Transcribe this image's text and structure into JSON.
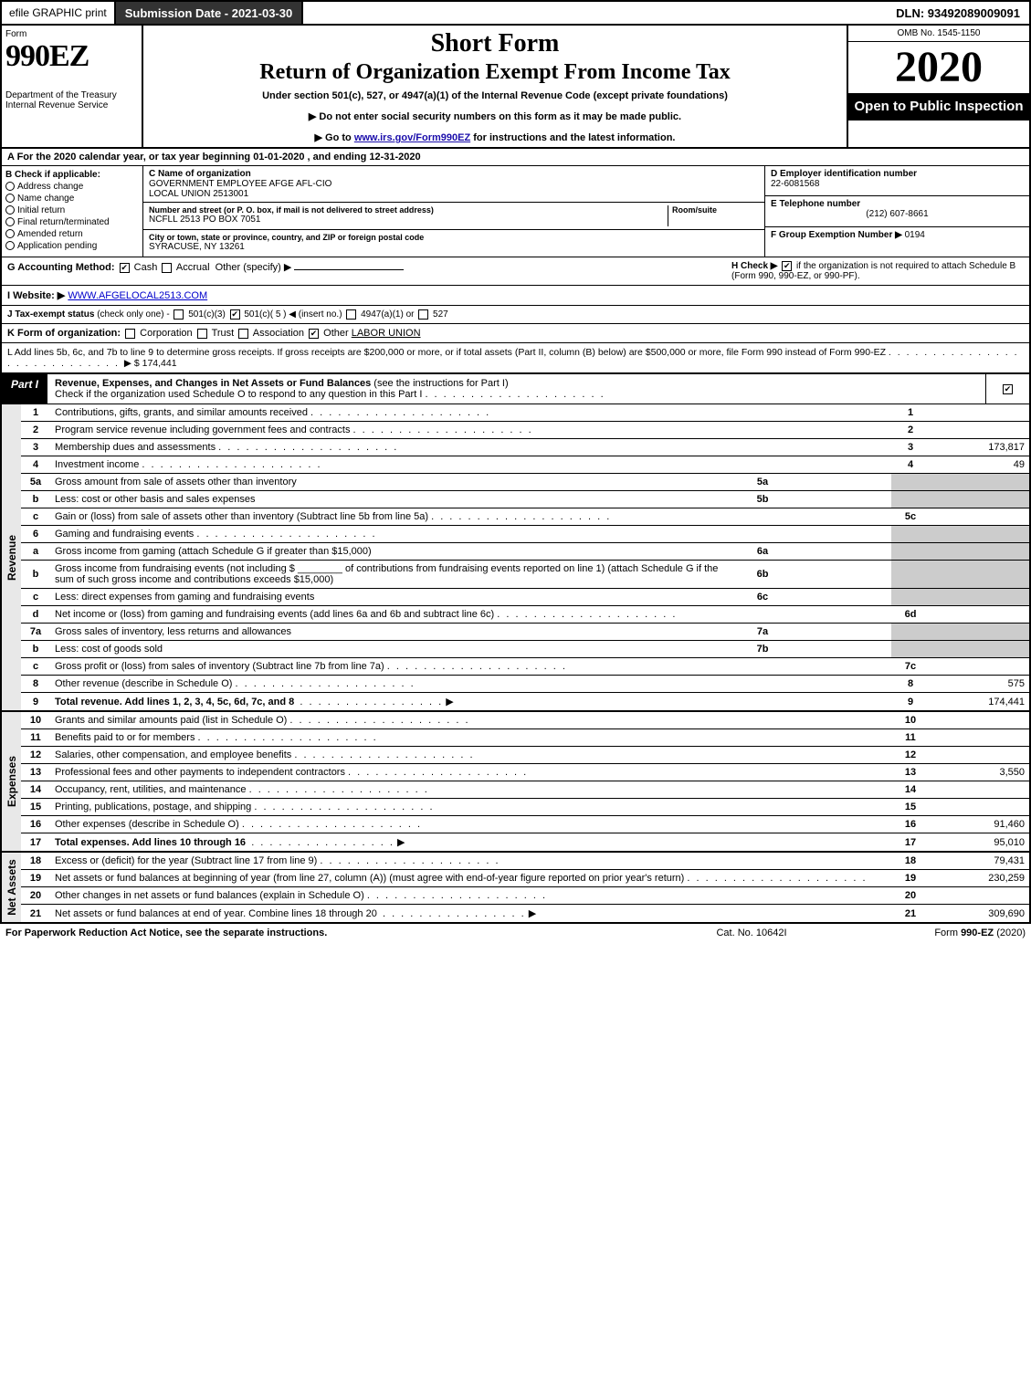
{
  "topbar": {
    "efile": "efile GRAPHIC print",
    "submission_label": "Submission Date - 2021-03-30",
    "dln": "DLN: 93492089009091"
  },
  "header": {
    "form_label": "Form",
    "form_number": "990EZ",
    "dept": "Department of the Treasury",
    "irs": "Internal Revenue Service",
    "title_short": "Short Form",
    "title_return": "Return of Organization Exempt From Income Tax",
    "subtitle": "Under section 501(c), 527, or 4947(a)(1) of the Internal Revenue Code (except private foundations)",
    "notice1": "▶ Do not enter social security numbers on this form as it may be made public.",
    "notice2_pre": "▶ Go to ",
    "notice2_link": "www.irs.gov/Form990EZ",
    "notice2_post": " for instructions and the latest information.",
    "omb": "OMB No. 1545-1150",
    "year": "2020",
    "open": "Open to Public Inspection"
  },
  "line_a": "A  For the 2020 calendar year, or tax year beginning 01-01-2020 , and ending 12-31-2020",
  "section_b": {
    "heading": "B  Check if applicable:",
    "opts": [
      "Address change",
      "Name change",
      "Initial return",
      "Final return/terminated",
      "Amended return",
      "Application pending"
    ]
  },
  "section_c": {
    "label_name": "C Name of organization",
    "name1": "GOVERNMENT EMPLOYEE AFGE AFL-CIO",
    "name2": "LOCAL UNION 2513001",
    "label_addr": "Number and street (or P. O. box, if mail is not delivered to street address)",
    "room_label": "Room/suite",
    "addr": "NCFLL 2513 PO BOX 7051",
    "label_city": "City or town, state or province, country, and ZIP or foreign postal code",
    "city": "SYRACUSE, NY  13261"
  },
  "section_d": {
    "label": "D Employer identification number",
    "value": "22-6081568"
  },
  "section_e": {
    "label": "E Telephone number",
    "value": "(212) 607-8661"
  },
  "section_f": {
    "label": "F Group Exemption Number ▶",
    "value": "0194"
  },
  "line_g": {
    "label": "G Accounting Method:",
    "cash": "Cash",
    "accrual": "Accrual",
    "other": "Other (specify) ▶"
  },
  "line_h": {
    "label": "H  Check ▶",
    "text": "if the organization is not required to attach Schedule B (Form 990, 990-EZ, or 990-PF)."
  },
  "line_i": {
    "label": "I Website: ▶",
    "value": "WWW.AFGELOCAL2513.COM"
  },
  "line_j": {
    "label": "J Tax-exempt status",
    "sub": "(check only one) -",
    "opt1": "501(c)(3)",
    "opt2": "501(c)( 5 ) ◀ (insert no.)",
    "opt3": "4947(a)(1) or",
    "opt4": "527"
  },
  "line_k": {
    "label": "K Form of organization:",
    "opts": [
      "Corporation",
      "Trust",
      "Association",
      "Other"
    ],
    "other_val": "LABOR UNION"
  },
  "line_l": {
    "text": "L Add lines 5b, 6c, and 7b to line 9 to determine gross receipts. If gross receipts are $200,000 or more, or if total assets (Part II, column (B) below) are $500,000 or more, file Form 990 instead of Form 990-EZ",
    "value": "▶ $ 174,441"
  },
  "part1": {
    "label": "Part I",
    "title": "Revenue, Expenses, and Changes in Net Assets or Fund Balances",
    "subtitle": "(see the instructions for Part I)",
    "check_text": "Check if the organization used Schedule O to respond to any question in this Part I"
  },
  "revenue_rows": [
    {
      "n": "1",
      "desc": "Contributions, gifts, grants, and similar amounts received",
      "box": "1",
      "val": ""
    },
    {
      "n": "2",
      "desc": "Program service revenue including government fees and contracts",
      "box": "2",
      "val": ""
    },
    {
      "n": "3",
      "desc": "Membership dues and assessments",
      "box": "3",
      "val": "173,817"
    },
    {
      "n": "4",
      "desc": "Investment income",
      "box": "4",
      "val": "49"
    },
    {
      "n": "5a",
      "desc": "Gross amount from sale of assets other than inventory",
      "sub": "5a",
      "subval": "",
      "box": "",
      "val": "",
      "shade": true
    },
    {
      "n": "b",
      "desc": "Less: cost or other basis and sales expenses",
      "sub": "5b",
      "subval": "",
      "box": "",
      "val": "",
      "shade": true
    },
    {
      "n": "c",
      "desc": "Gain or (loss) from sale of assets other than inventory (Subtract line 5b from line 5a)",
      "box": "5c",
      "val": ""
    },
    {
      "n": "6",
      "desc": "Gaming and fundraising events",
      "box": "",
      "val": "",
      "shade": true,
      "noborder": true
    },
    {
      "n": "a",
      "desc": "Gross income from gaming (attach Schedule G if greater than $15,000)",
      "sub": "6a",
      "subval": "",
      "box": "",
      "val": "",
      "shade": true
    },
    {
      "n": "b",
      "desc": "Gross income from fundraising events (not including $ ________ of contributions from fundraising events reported on line 1) (attach Schedule G if the sum of such gross income and contributions exceeds $15,000)",
      "sub": "6b",
      "subval": "",
      "box": "",
      "val": "",
      "shade": true
    },
    {
      "n": "c",
      "desc": "Less: direct expenses from gaming and fundraising events",
      "sub": "6c",
      "subval": "",
      "box": "",
      "val": "",
      "shade": true
    },
    {
      "n": "d",
      "desc": "Net income or (loss) from gaming and fundraising events (add lines 6a and 6b and subtract line 6c)",
      "box": "6d",
      "val": ""
    },
    {
      "n": "7a",
      "desc": "Gross sales of inventory, less returns and allowances",
      "sub": "7a",
      "subval": "",
      "box": "",
      "val": "",
      "shade": true
    },
    {
      "n": "b",
      "desc": "Less: cost of goods sold",
      "sub": "7b",
      "subval": "",
      "box": "",
      "val": "",
      "shade": true
    },
    {
      "n": "c",
      "desc": "Gross profit or (loss) from sales of inventory (Subtract line 7b from line 7a)",
      "box": "7c",
      "val": ""
    },
    {
      "n": "8",
      "desc": "Other revenue (describe in Schedule O)",
      "box": "8",
      "val": "575"
    },
    {
      "n": "9",
      "desc": "Total revenue. Add lines 1, 2, 3, 4, 5c, 6d, 7c, and 8",
      "box": "9",
      "val": "174,441",
      "bold": true,
      "arrow": true
    }
  ],
  "expense_rows": [
    {
      "n": "10",
      "desc": "Grants and similar amounts paid (list in Schedule O)",
      "box": "10",
      "val": ""
    },
    {
      "n": "11",
      "desc": "Benefits paid to or for members",
      "box": "11",
      "val": ""
    },
    {
      "n": "12",
      "desc": "Salaries, other compensation, and employee benefits",
      "box": "12",
      "val": ""
    },
    {
      "n": "13",
      "desc": "Professional fees and other payments to independent contractors",
      "box": "13",
      "val": "3,550"
    },
    {
      "n": "14",
      "desc": "Occupancy, rent, utilities, and maintenance",
      "box": "14",
      "val": ""
    },
    {
      "n": "15",
      "desc": "Printing, publications, postage, and shipping",
      "box": "15",
      "val": ""
    },
    {
      "n": "16",
      "desc": "Other expenses (describe in Schedule O)",
      "box": "16",
      "val": "91,460"
    },
    {
      "n": "17",
      "desc": "Total expenses. Add lines 10 through 16",
      "box": "17",
      "val": "95,010",
      "bold": true,
      "arrow": true
    }
  ],
  "netasset_rows": [
    {
      "n": "18",
      "desc": "Excess or (deficit) for the year (Subtract line 17 from line 9)",
      "box": "18",
      "val": "79,431"
    },
    {
      "n": "19",
      "desc": "Net assets or fund balances at beginning of year (from line 27, column (A)) (must agree with end-of-year figure reported on prior year's return)",
      "box": "19",
      "val": "230,259"
    },
    {
      "n": "20",
      "desc": "Other changes in net assets or fund balances (explain in Schedule O)",
      "box": "20",
      "val": ""
    },
    {
      "n": "21",
      "desc": "Net assets or fund balances at end of year. Combine lines 18 through 20",
      "box": "21",
      "val": "309,690",
      "arrow": true
    }
  ],
  "footer": {
    "left": "For Paperwork Reduction Act Notice, see the separate instructions.",
    "center": "Cat. No. 10642I",
    "right": "Form 990-EZ (2020)"
  },
  "sections": {
    "revenue": "Revenue",
    "expenses": "Expenses",
    "netassets": "Net Assets"
  }
}
